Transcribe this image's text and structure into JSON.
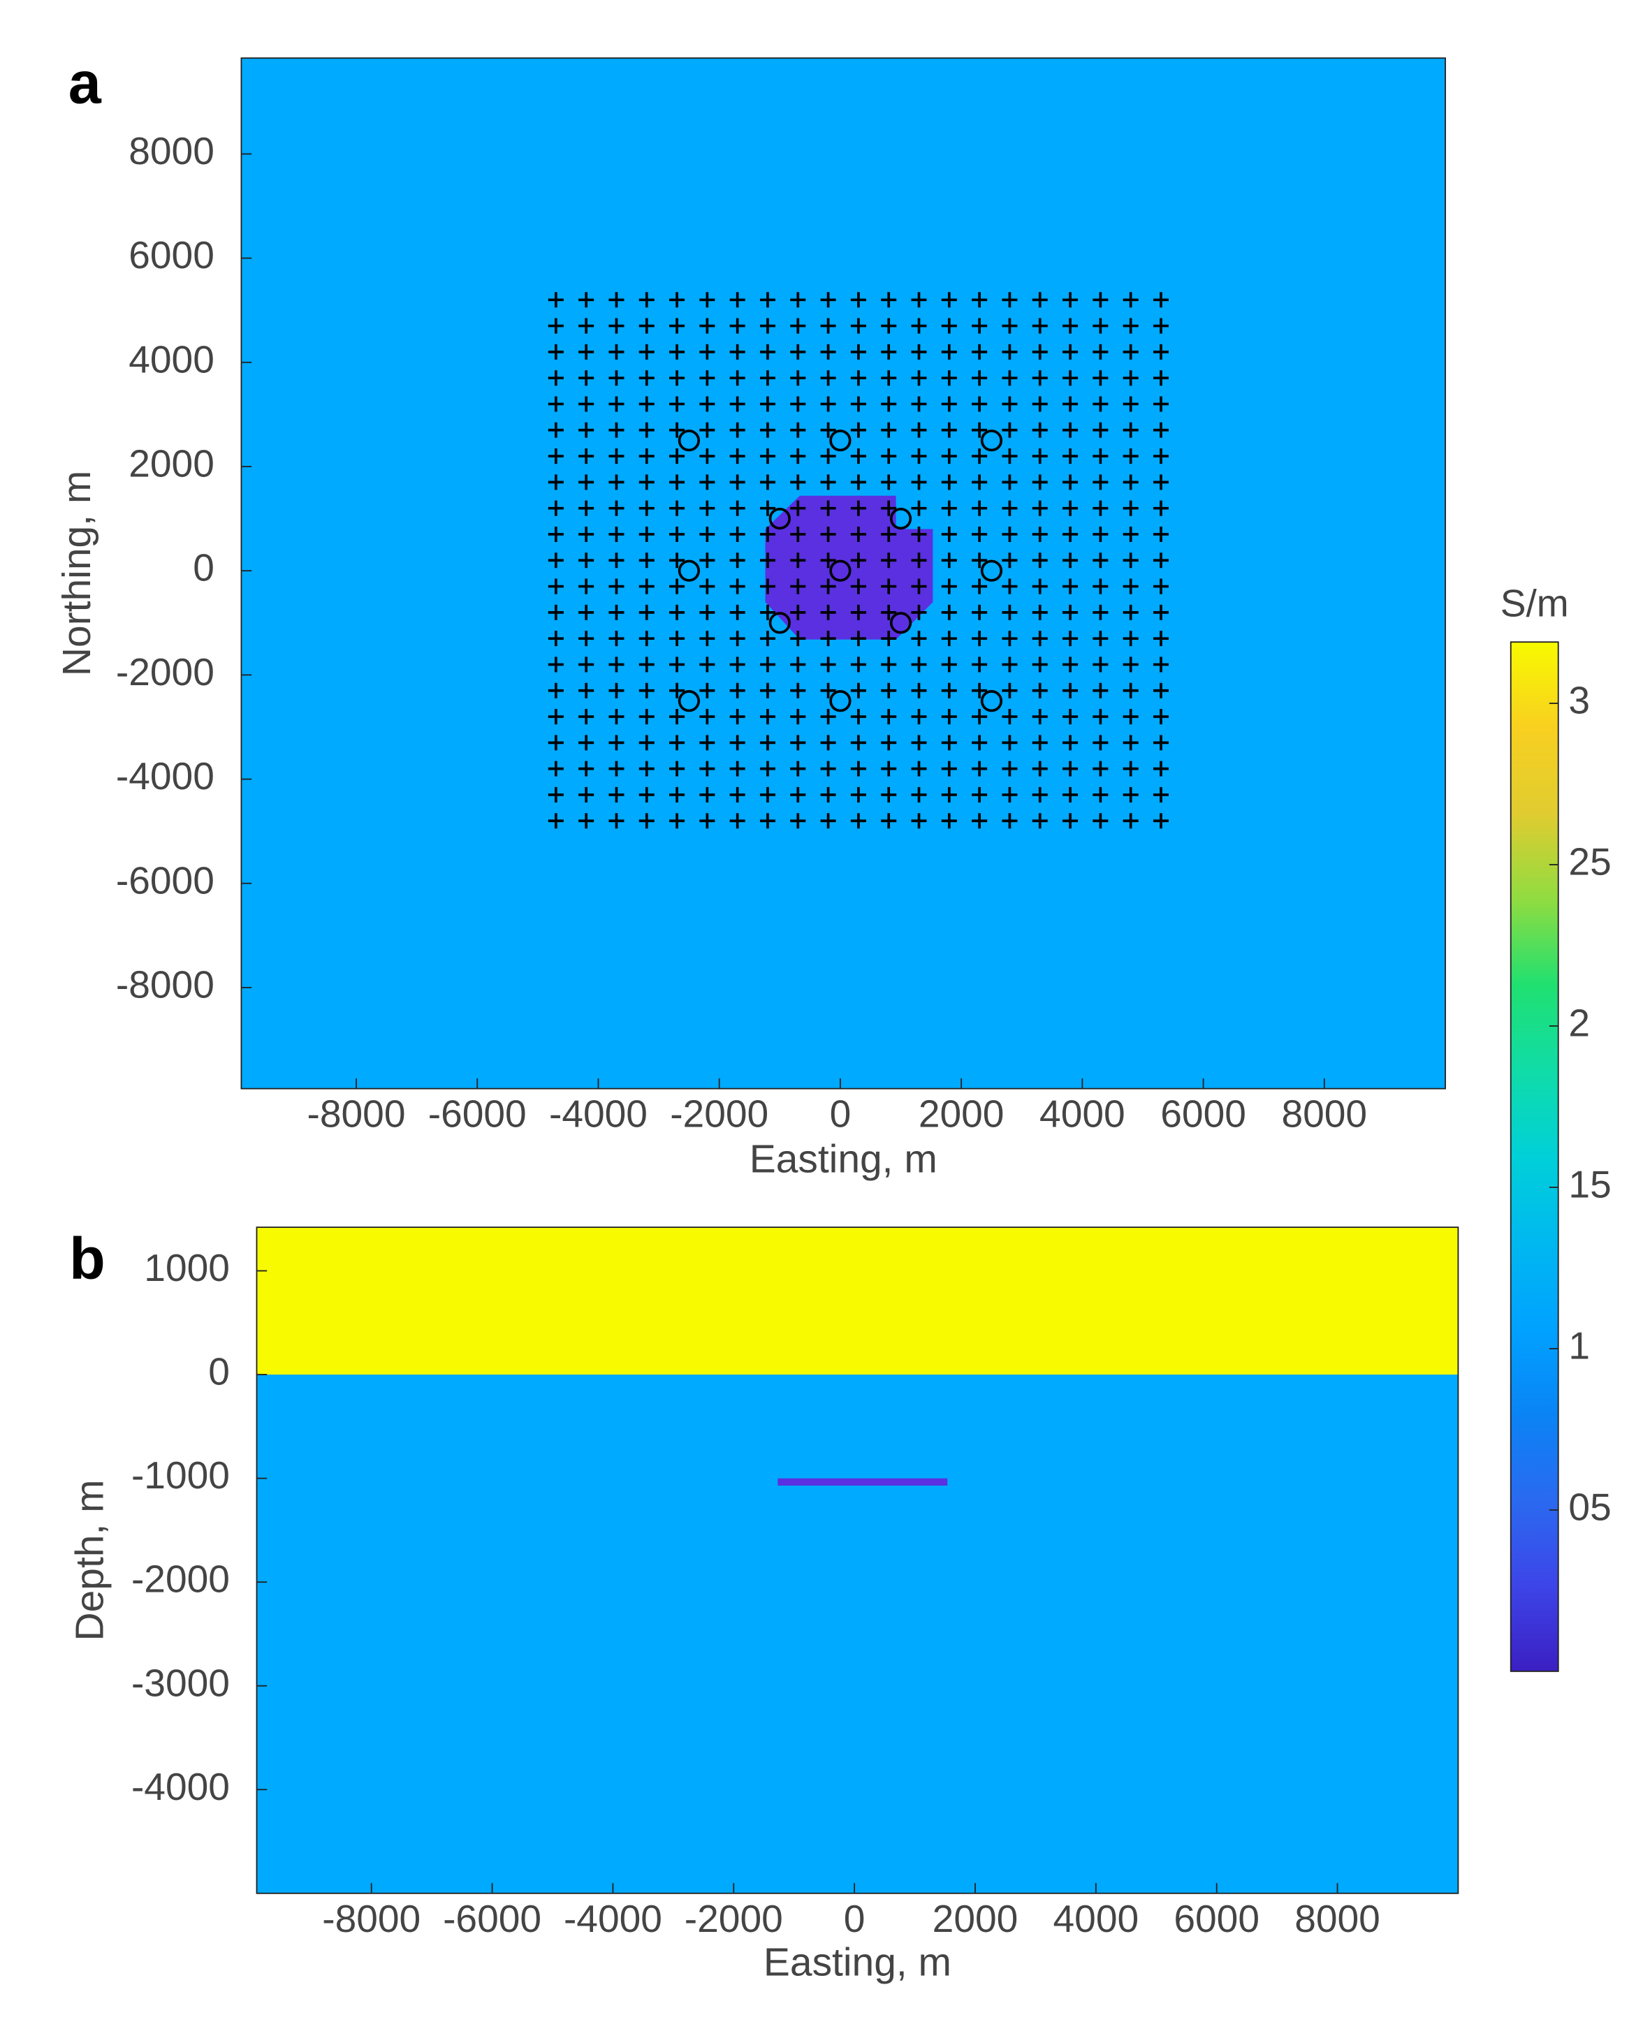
{
  "chart_data": [
    {
      "type": "map",
      "panel_label": "a",
      "xlabel": "Easting, m",
      "ylabel": "Northing, m",
      "xlim": [
        -9900,
        10000
      ],
      "ylim": [
        -9940,
        9840
      ],
      "xticks": [
        -8000,
        -6000,
        -4000,
        -2000,
        0,
        2000,
        4000,
        6000,
        8000
      ],
      "yticks": [
        -8000,
        -6000,
        -4000,
        -2000,
        0,
        2000,
        4000,
        6000,
        8000
      ],
      "background_color": "#00aaff",
      "regions": [
        {
          "color": "#5a30e0",
          "x": [
            -670,
            920,
            920,
            1530,
            1530,
            920,
            -670,
            -1240,
            -1240
          ],
          "y": [
            1440,
            1440,
            800,
            800,
            -600,
            -1320,
            -1320,
            -600,
            800
          ]
        }
      ],
      "receiver_grid_x": [
        -4700,
        -4200,
        -3700,
        -3200,
        -2700,
        -2200,
        -1700,
        -1200,
        -700,
        -200,
        300,
        800,
        1300,
        1800,
        2300,
        2800,
        3300,
        3800,
        4300,
        4800,
        5300
      ],
      "receiver_grid_y": [
        -4800,
        -4300,
        -3800,
        -3300,
        -2800,
        -2300,
        -1800,
        -1300,
        -800,
        -300,
        200,
        700,
        1200,
        1700,
        2200,
        2700,
        3200,
        3700,
        4200,
        4700,
        5200
      ],
      "transmitters_x": [
        -2500,
        0,
        2500,
        -1000,
        1000,
        -2500,
        0,
        2500,
        -1000,
        1000,
        -2500,
        0,
        2500
      ],
      "transmitters_y": [
        2500,
        2500,
        2500,
        1000,
        1000,
        0,
        0,
        0,
        -1000,
        -1000,
        -2500,
        -2500,
        -2500
      ]
    },
    {
      "type": "section",
      "panel_label": "b",
      "xlabel": "Easting, m",
      "ylabel": "Depth, m",
      "xlim": [
        -9900,
        10000
      ],
      "ylim": [
        -5000,
        1420
      ],
      "xticks": [
        -8000,
        -6000,
        -4000,
        -2000,
        0,
        2000,
        4000,
        6000,
        8000
      ],
      "yticks": [
        -4000,
        -3000,
        -2000,
        -1000,
        0,
        1000
      ],
      "background_color": "#00aaff",
      "air_color": "#f8fa00",
      "surface": 0,
      "regions": [
        {
          "color": "#5a30e0",
          "x": [
            -1270,
            1540,
            1540,
            -1270
          ],
          "y": [
            -1000,
            -1000,
            -1070,
            -1070
          ]
        }
      ]
    }
  ],
  "colorbar": {
    "label": "S/m",
    "clim": [
      0,
      3.19
    ],
    "ticks": [
      {
        "value": 0.5,
        "label": "05"
      },
      1,
      {
        "value": 1.5,
        "label": "15"
      },
      2,
      {
        "value": 2.5,
        "label": "25"
      },
      3
    ],
    "colors": [
      "#3b1fc2",
      "#3d45e8",
      "#2a6af0",
      "#0a84f5",
      "#00a2ff",
      "#00b8f0",
      "#00d0d8",
      "#10dca8",
      "#20e070",
      "#90dc40",
      "#e0cc30",
      "#f8d020",
      "#f8fa00"
    ]
  }
}
